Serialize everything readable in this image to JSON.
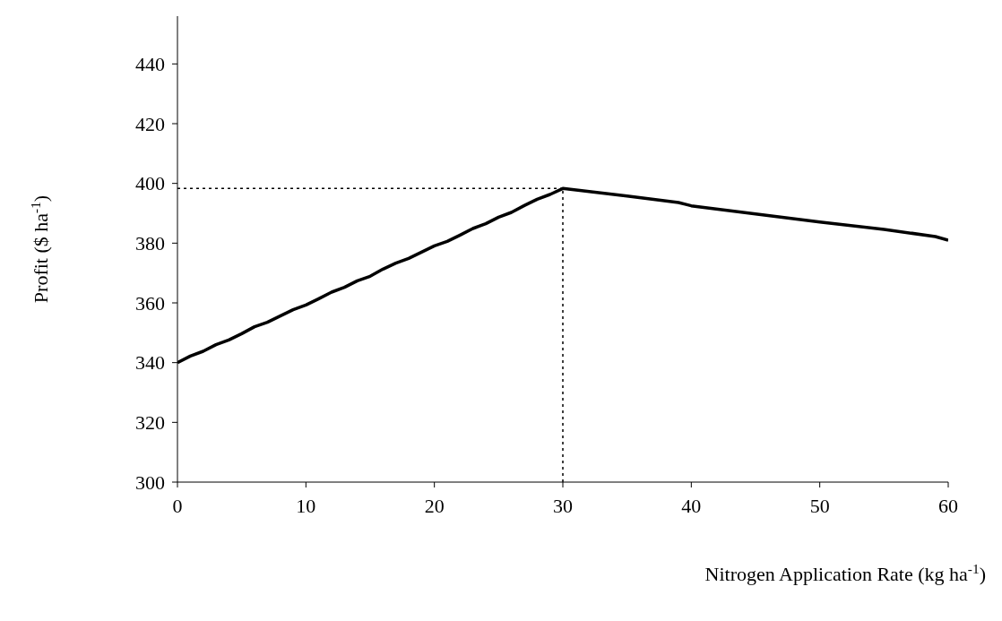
{
  "chart_data": {
    "type": "line",
    "xlabel": "Nitrogen Application Rate (kg ha$^{-1}$)",
    "ylabel": "Profit ($ ha$^{-1}$)",
    "x": [
      0,
      1,
      2,
      3,
      4,
      5,
      6,
      7,
      8,
      9,
      10,
      11,
      12,
      13,
      14,
      15,
      16,
      17,
      18,
      19,
      20,
      21,
      22,
      23,
      24,
      25,
      26,
      27,
      28,
      29,
      30,
      35,
      39,
      40,
      45,
      50,
      55,
      59,
      60
    ],
    "series": [
      {
        "color": "#000000",
        "values": [
          340,
          342.2,
          343.8,
          346,
          347.6,
          349.7,
          352,
          353.5,
          355.6,
          357.7,
          359.3,
          361.4,
          363.6,
          365.2,
          367.4,
          368.9,
          371.3,
          373.3,
          374.9,
          377,
          379.1,
          380.6,
          382.7,
          384.9,
          386.5,
          388.7,
          390.3,
          392.6,
          394.7,
          396.3,
          398.3,
          395.8,
          393.6,
          392.5,
          389.8,
          387.1,
          384.6,
          382.2,
          381
        ]
      }
    ],
    "xlim": [
      0,
      60
    ],
    "xticks": [
      0,
      10,
      20,
      30,
      40,
      50,
      60
    ],
    "ylim": [
      300,
      456
    ],
    "yticks": [
      300,
      320,
      340,
      360,
      380,
      400,
      420,
      440
    ],
    "grid": false,
    "marker": "none",
    "line_style": "solid",
    "ref_lines": [
      {
        "axis": "y",
        "value": 398.3,
        "color": "#000000",
        "line_style": "dotted"
      },
      {
        "axis": "x",
        "value": 30,
        "color": "#000000",
        "line_style": "dotted"
      }
    ]
  }
}
